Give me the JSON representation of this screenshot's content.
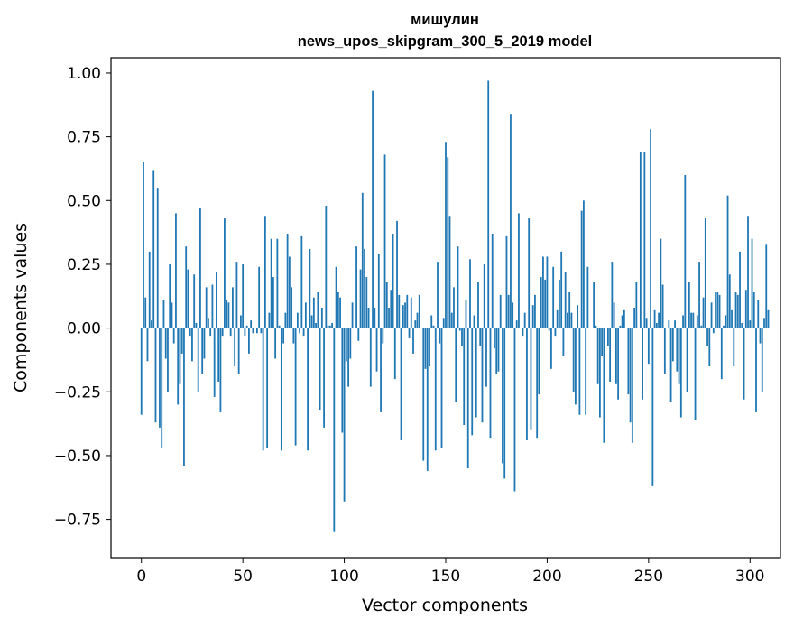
{
  "chart_data": {
    "type": "bar",
    "title": [
      "мишулин",
      "news_upos_skipgram_300_5_2019 model"
    ],
    "xlabel": "Vector components",
    "ylabel": "Components values",
    "xlim": [
      -15,
      315
    ],
    "ylim": [
      -0.9,
      1.06
    ],
    "xticks": [
      0,
      50,
      100,
      150,
      200,
      250,
      300
    ],
    "yticks": [
      -0.75,
      -0.5,
      -0.25,
      0.0,
      0.25,
      0.5,
      0.75,
      1.0
    ],
    "ytick_labels": [
      "−0.75",
      "−0.50",
      "−0.25",
      "0.00",
      "0.25",
      "0.50",
      "0.75",
      "1.00"
    ],
    "bar_color": "#1f77b4",
    "grid": false,
    "values": [
      -0.34,
      0.65,
      0.12,
      -0.13,
      0.3,
      0.03,
      0.62,
      -0.37,
      0.55,
      -0.39,
      -0.47,
      0.11,
      -0.12,
      -0.25,
      0.25,
      0.1,
      -0.06,
      0.45,
      -0.3,
      -0.22,
      -0.1,
      -0.54,
      0.32,
      0.23,
      -0.03,
      -0.13,
      0.21,
      0.02,
      -0.25,
      0.47,
      -0.18,
      -0.12,
      0.16,
      0.04,
      -0.03,
      0.17,
      -0.27,
      0.22,
      -0.21,
      -0.33,
      -0.03,
      0.43,
      0.11,
      0.1,
      -0.03,
      0.16,
      -0.15,
      0.26,
      -0.18,
      0.05,
      0.25,
      -0.03,
      0.01,
      -0.1,
      0.03,
      -0.02,
      0.0,
      -0.02,
      0.24,
      -0.02,
      -0.48,
      0.44,
      -0.47,
      0.06,
      0.35,
      0.2,
      -0.12,
      0.35,
      0.01,
      -0.48,
      -0.06,
      0.06,
      0.37,
      0.28,
      0.16,
      -0.06,
      -0.46,
      0.06,
      -0.02,
      0.36,
      -0.03,
      0.1,
      -0.48,
      0.31,
      0.05,
      0.12,
      0.02,
      0.14,
      -0.32,
      0.08,
      -0.39,
      0.48,
      0.01,
      0.01,
      0.02,
      -0.8,
      0.24,
      0.14,
      0.12,
      -0.41,
      -0.68,
      -0.13,
      -0.23,
      -0.12,
      0.1,
      0.0,
      0.32,
      -0.05,
      0.23,
      0.53,
      0.31,
      0.2,
      0.08,
      -0.23,
      0.93,
      0.08,
      -0.17,
      0.29,
      -0.33,
      -0.06,
      0.68,
      0.18,
      0.08,
      0.15,
      0.37,
      -0.2,
      0.42,
      0.13,
      -0.44,
      0.09,
      0.1,
      0.13,
      -0.04,
      0.12,
      -0.1,
      0.03,
      0.06,
      0.13,
      0.0,
      -0.52,
      -0.16,
      -0.56,
      -0.15,
      0.05,
      0.01,
      -0.48,
      0.26,
      -0.06,
      -0.47,
      0.04,
      0.73,
      0.67,
      0.44,
      0.06,
      0.16,
      -0.29,
      0.32,
      -0.01,
      -0.07,
      -0.38,
      0.11,
      -0.55,
      0.27,
      -0.42,
      0.05,
      -0.35,
      0.18,
      -0.07,
      -0.37,
      0.25,
      -0.23,
      0.97,
      -0.43,
      0.37,
      -0.08,
      -0.18,
      -0.17,
      0.13,
      -0.53,
      -0.59,
      0.36,
      0.13,
      0.84,
      0.1,
      -0.64,
      0.03,
      0.45,
      0.0,
      -0.03,
      0.06,
      -0.44,
      0.43,
      -0.4,
      0.09,
      0.13,
      -0.43,
      -0.26,
      0.2,
      0.28,
      0.19,
      0.28,
      -0.01,
      -0.16,
      0.24,
      -0.03,
      0.07,
      0.19,
      0.3,
      -0.11,
      0.22,
      0.06,
      0.14,
      0.06,
      -0.25,
      -0.3,
      0.09,
      -0.34,
      0.46,
      0.5,
      -0.34,
      0.24,
      0.0,
      0.0,
      0.18,
      0.01,
      -0.22,
      -0.35,
      -0.11,
      -0.45,
      0.0,
      -0.07,
      -0.21,
      0.26,
      0.1,
      -0.22,
      -0.28,
      0.01,
      0.05,
      0.07,
      0.0,
      -0.26,
      -0.37,
      -0.45,
      0.08,
      0.18,
      0.0,
      0.69,
      -0.28,
      0.69,
      0.04,
      -0.14,
      0.78,
      -0.62,
      0.07,
      0.02,
      0.06,
      0.35,
      0.17,
      -0.18,
      0.0,
      0.03,
      -0.29,
      -0.13,
      0.03,
      -0.17,
      -0.22,
      -0.35,
      0.05,
      0.6,
      -0.25,
      0.18,
      0.06,
      0.06,
      -0.36,
      0.05,
      0.26,
      0.01,
      0.12,
      0.43,
      -0.07,
      -0.15,
      0.1,
      -0.02,
      0.14,
      0.14,
      0.13,
      -0.2,
      0.01,
      0.05,
      0.52,
      0.21,
      0.07,
      -0.15,
      0.14,
      0.13,
      0.3,
      0.02,
      -0.28,
      0.15,
      0.44,
      0.03,
      0.35,
      0.14,
      -0.33,
      0.11,
      -0.06,
      -0.25,
      0.04,
      0.33,
      0.07
    ]
  }
}
